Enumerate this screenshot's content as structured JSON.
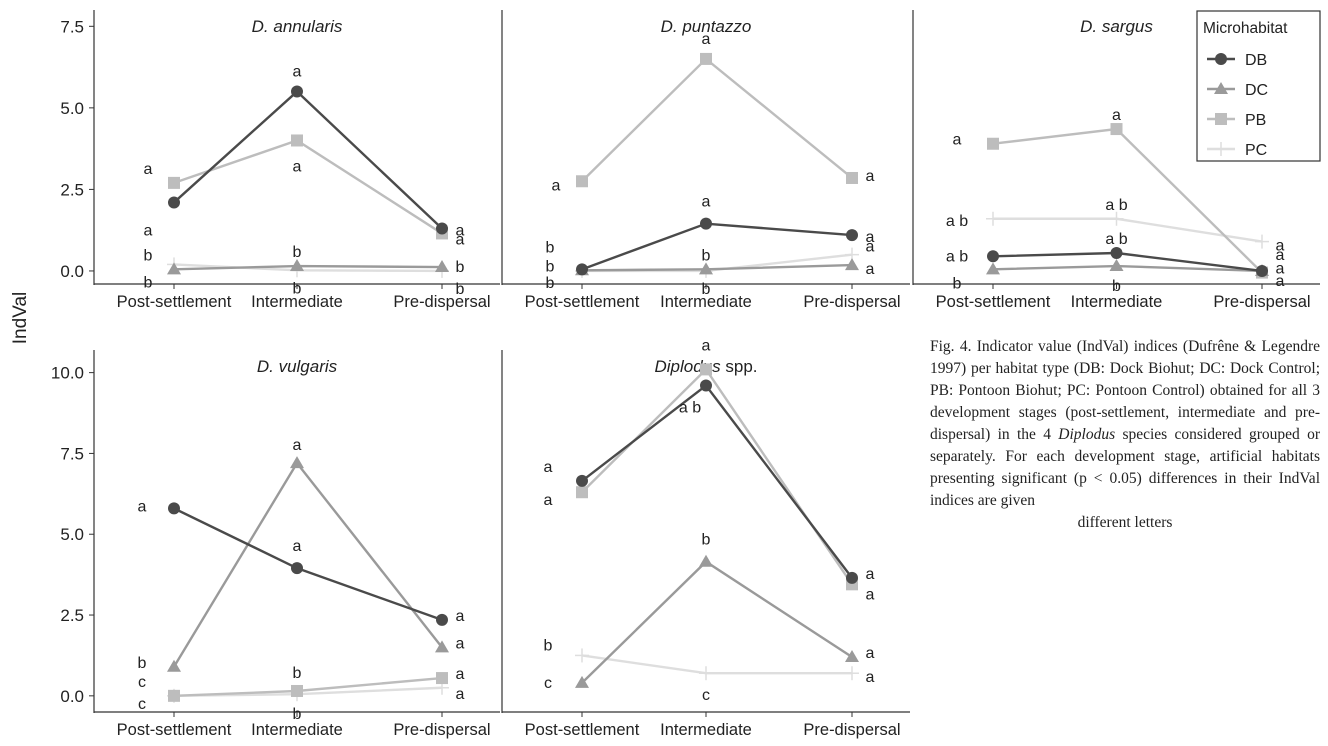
{
  "figure": {
    "ylabel": "IndVal",
    "caption_pre": "Fig. 4. Indicator value (IndVal) indices (Dufrêne & Legendre 1997) per habitat type (DB: Dock Biohut; DC: Dock Control; PB: Pontoon Biohut; PC: Pontoon Control) obtained for all 3 development stages (post-settlement, intermediate and pre-dispersal) in the 4 ",
    "caption_italic": "Diplodus",
    "caption_post": " species considered grouped or separately. For each development stage, artificial habitats presenting significant (p < 0.05) differences in their IndVal indices are given",
    "caption_last": "different letters"
  },
  "legend": {
    "title": "Microhabitat",
    "placement": "top-right",
    "entries": [
      "DB",
      "DC",
      "PB",
      "PC"
    ]
  },
  "series_styles": {
    "DB": {
      "color": "#4a4a4a",
      "marker": "circle"
    },
    "DC": {
      "color": "#9a9a9a",
      "marker": "triangle"
    },
    "PB": {
      "color": "#bdbdbd",
      "marker": "square"
    },
    "PC": {
      "color": "#dedede",
      "marker": "plus"
    }
  },
  "chart_data": [
    {
      "type": "line",
      "title": "D. annularis",
      "title_italic_part": "D. annularis",
      "categories": [
        "Post-settlement",
        "Intermediate",
        "Pre-dispersal"
      ],
      "ylim": [
        -0.4,
        8.0
      ],
      "yticks": [
        "0.0",
        "2.5",
        "5.0",
        "7.5"
      ],
      "ytick_values": [
        0,
        2.5,
        5,
        7.5
      ],
      "series": [
        {
          "name": "DB",
          "values": [
            2.1,
            5.5,
            1.3
          ],
          "letters": [
            "a",
            "a",
            "a"
          ]
        },
        {
          "name": "DC",
          "values": [
            0.05,
            0.15,
            0.12
          ],
          "letters": [
            "b",
            "b",
            "b"
          ]
        },
        {
          "name": "PB",
          "values": [
            2.7,
            4.0,
            1.15
          ],
          "letters": [
            "a",
            "a",
            "a"
          ]
        },
        {
          "name": "PC",
          "values": [
            0.2,
            0.02,
            0.0
          ],
          "letters": [
            "b",
            "b",
            "b"
          ]
        }
      ]
    },
    {
      "type": "line",
      "title": "D. puntazzo",
      "title_italic_part": "D. puntazzo",
      "categories": [
        "Post-settlement",
        "Intermediate",
        "Pre-dispersal"
      ],
      "ylim": [
        -0.4,
        8.0
      ],
      "yticks": [],
      "ytick_values": [],
      "series": [
        {
          "name": "DB",
          "values": [
            0.05,
            1.45,
            1.1
          ],
          "letters": [
            "b",
            "a",
            "a"
          ]
        },
        {
          "name": "DC",
          "values": [
            0.02,
            0.05,
            0.18
          ],
          "letters": [
            "b",
            "b",
            "a"
          ]
        },
        {
          "name": "PB",
          "values": [
            2.75,
            6.5,
            2.85
          ],
          "letters": [
            "a",
            "a",
            "a"
          ]
        },
        {
          "name": "PC",
          "values": [
            0.0,
            0.0,
            0.5
          ],
          "letters": [
            "b",
            "b",
            "a"
          ]
        }
      ]
    },
    {
      "type": "line",
      "title": "D. sargus",
      "title_italic_part": "D. sargus",
      "categories": [
        "Post-settlement",
        "Intermediate",
        "Pre-dispersal"
      ],
      "ylim": [
        -0.4,
        8.0
      ],
      "yticks": [],
      "ytick_values": [],
      "series": [
        {
          "name": "DB",
          "values": [
            0.45,
            0.55,
            0.0
          ],
          "letters": [
            "a b",
            "a b",
            "a"
          ]
        },
        {
          "name": "DC",
          "values": [
            0.05,
            0.15,
            0.0
          ],
          "letters": [
            "b",
            "b",
            "a"
          ]
        },
        {
          "name": "PB",
          "values": [
            3.9,
            4.35,
            -0.05
          ],
          "letters": [
            "a",
            "a",
            "a"
          ]
        },
        {
          "name": "PC",
          "values": [
            1.6,
            1.6,
            0.9
          ],
          "letters": [
            "a b",
            "a b",
            "a"
          ]
        }
      ]
    },
    {
      "type": "line",
      "title": "D. vulgaris",
      "title_italic_part": "D. vulgaris",
      "categories": [
        "Post-settlement",
        "Intermediate",
        "Pre-dispersal"
      ],
      "ylim": [
        -0.5,
        10.7
      ],
      "yticks": [
        "0.0",
        "2.5",
        "5.0",
        "7.5",
        "10.0"
      ],
      "ytick_values": [
        0,
        2.5,
        5,
        7.5,
        10
      ],
      "series": [
        {
          "name": "DB",
          "values": [
            5.8,
            3.95,
            2.35
          ],
          "letters": [
            "a",
            "a",
            "a"
          ]
        },
        {
          "name": "DC",
          "values": [
            0.9,
            7.2,
            1.5
          ],
          "letters": [
            "b",
            "a",
            "a"
          ]
        },
        {
          "name": "PB",
          "values": [
            0.0,
            0.15,
            0.55
          ],
          "letters": [
            "c",
            "b",
            "a"
          ]
        },
        {
          "name": "PC",
          "values": [
            0.0,
            0.05,
            0.25
          ],
          "letters": [
            "c",
            "b",
            "a"
          ]
        }
      ]
    },
    {
      "type": "line",
      "title": "Diplodus spp.",
      "title_italic_part": "Diplodus",
      "title_rest": " spp.",
      "categories": [
        "Post-settlement",
        "Intermediate",
        "Pre-dispersal"
      ],
      "ylim": [
        -0.5,
        10.7
      ],
      "yticks": [],
      "ytick_values": [],
      "series": [
        {
          "name": "DB",
          "values": [
            6.65,
            9.6,
            3.65
          ],
          "letters": [
            "a",
            "a b",
            "a"
          ]
        },
        {
          "name": "DC",
          "values": [
            0.4,
            4.15,
            1.2
          ],
          "letters": [
            "c",
            "b",
            "a"
          ]
        },
        {
          "name": "PB",
          "values": [
            6.3,
            10.1,
            3.45
          ],
          "letters": [
            "a",
            "a",
            "a"
          ]
        },
        {
          "name": "PC",
          "values": [
            1.25,
            0.7,
            0.7
          ],
          "letters": [
            "b",
            "c",
            "a"
          ]
        }
      ]
    }
  ]
}
